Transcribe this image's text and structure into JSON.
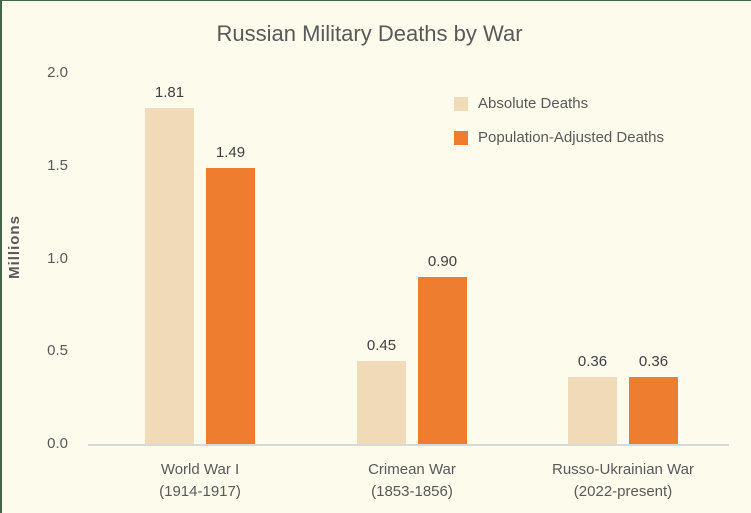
{
  "frame": {
    "background_color": "#fdfbec",
    "border_color": "#466449"
  },
  "chart_data": {
    "type": "bar",
    "title": "Russian Military Deaths by War",
    "xlabel": "",
    "ylabel": "Millions",
    "ylim": [
      0,
      2.0
    ],
    "yticks": [
      "2.0",
      "1.5",
      "1.0",
      "0.5",
      "0.0"
    ],
    "grid": false,
    "legend_position": "top-right",
    "axis_line_color": "#d9d9d9",
    "categories": [
      "World War I\n(1914-1917)",
      "Crimean War\n(1853-1856)",
      "Russo-Ukrainian War\n(2022-present)"
    ],
    "series": [
      {
        "name": "Absolute Deaths",
        "color": "#f0dab8",
        "values": [
          1.81,
          0.45,
          0.36
        ],
        "labels": [
          "1.81",
          "0.45",
          "0.36"
        ]
      },
      {
        "name": "Population-Adjusted Deaths",
        "color": "#ee7d2f",
        "values": [
          1.49,
          0.9,
          0.36
        ],
        "labels": [
          "1.49",
          "0.90",
          "0.36"
        ]
      }
    ]
  }
}
